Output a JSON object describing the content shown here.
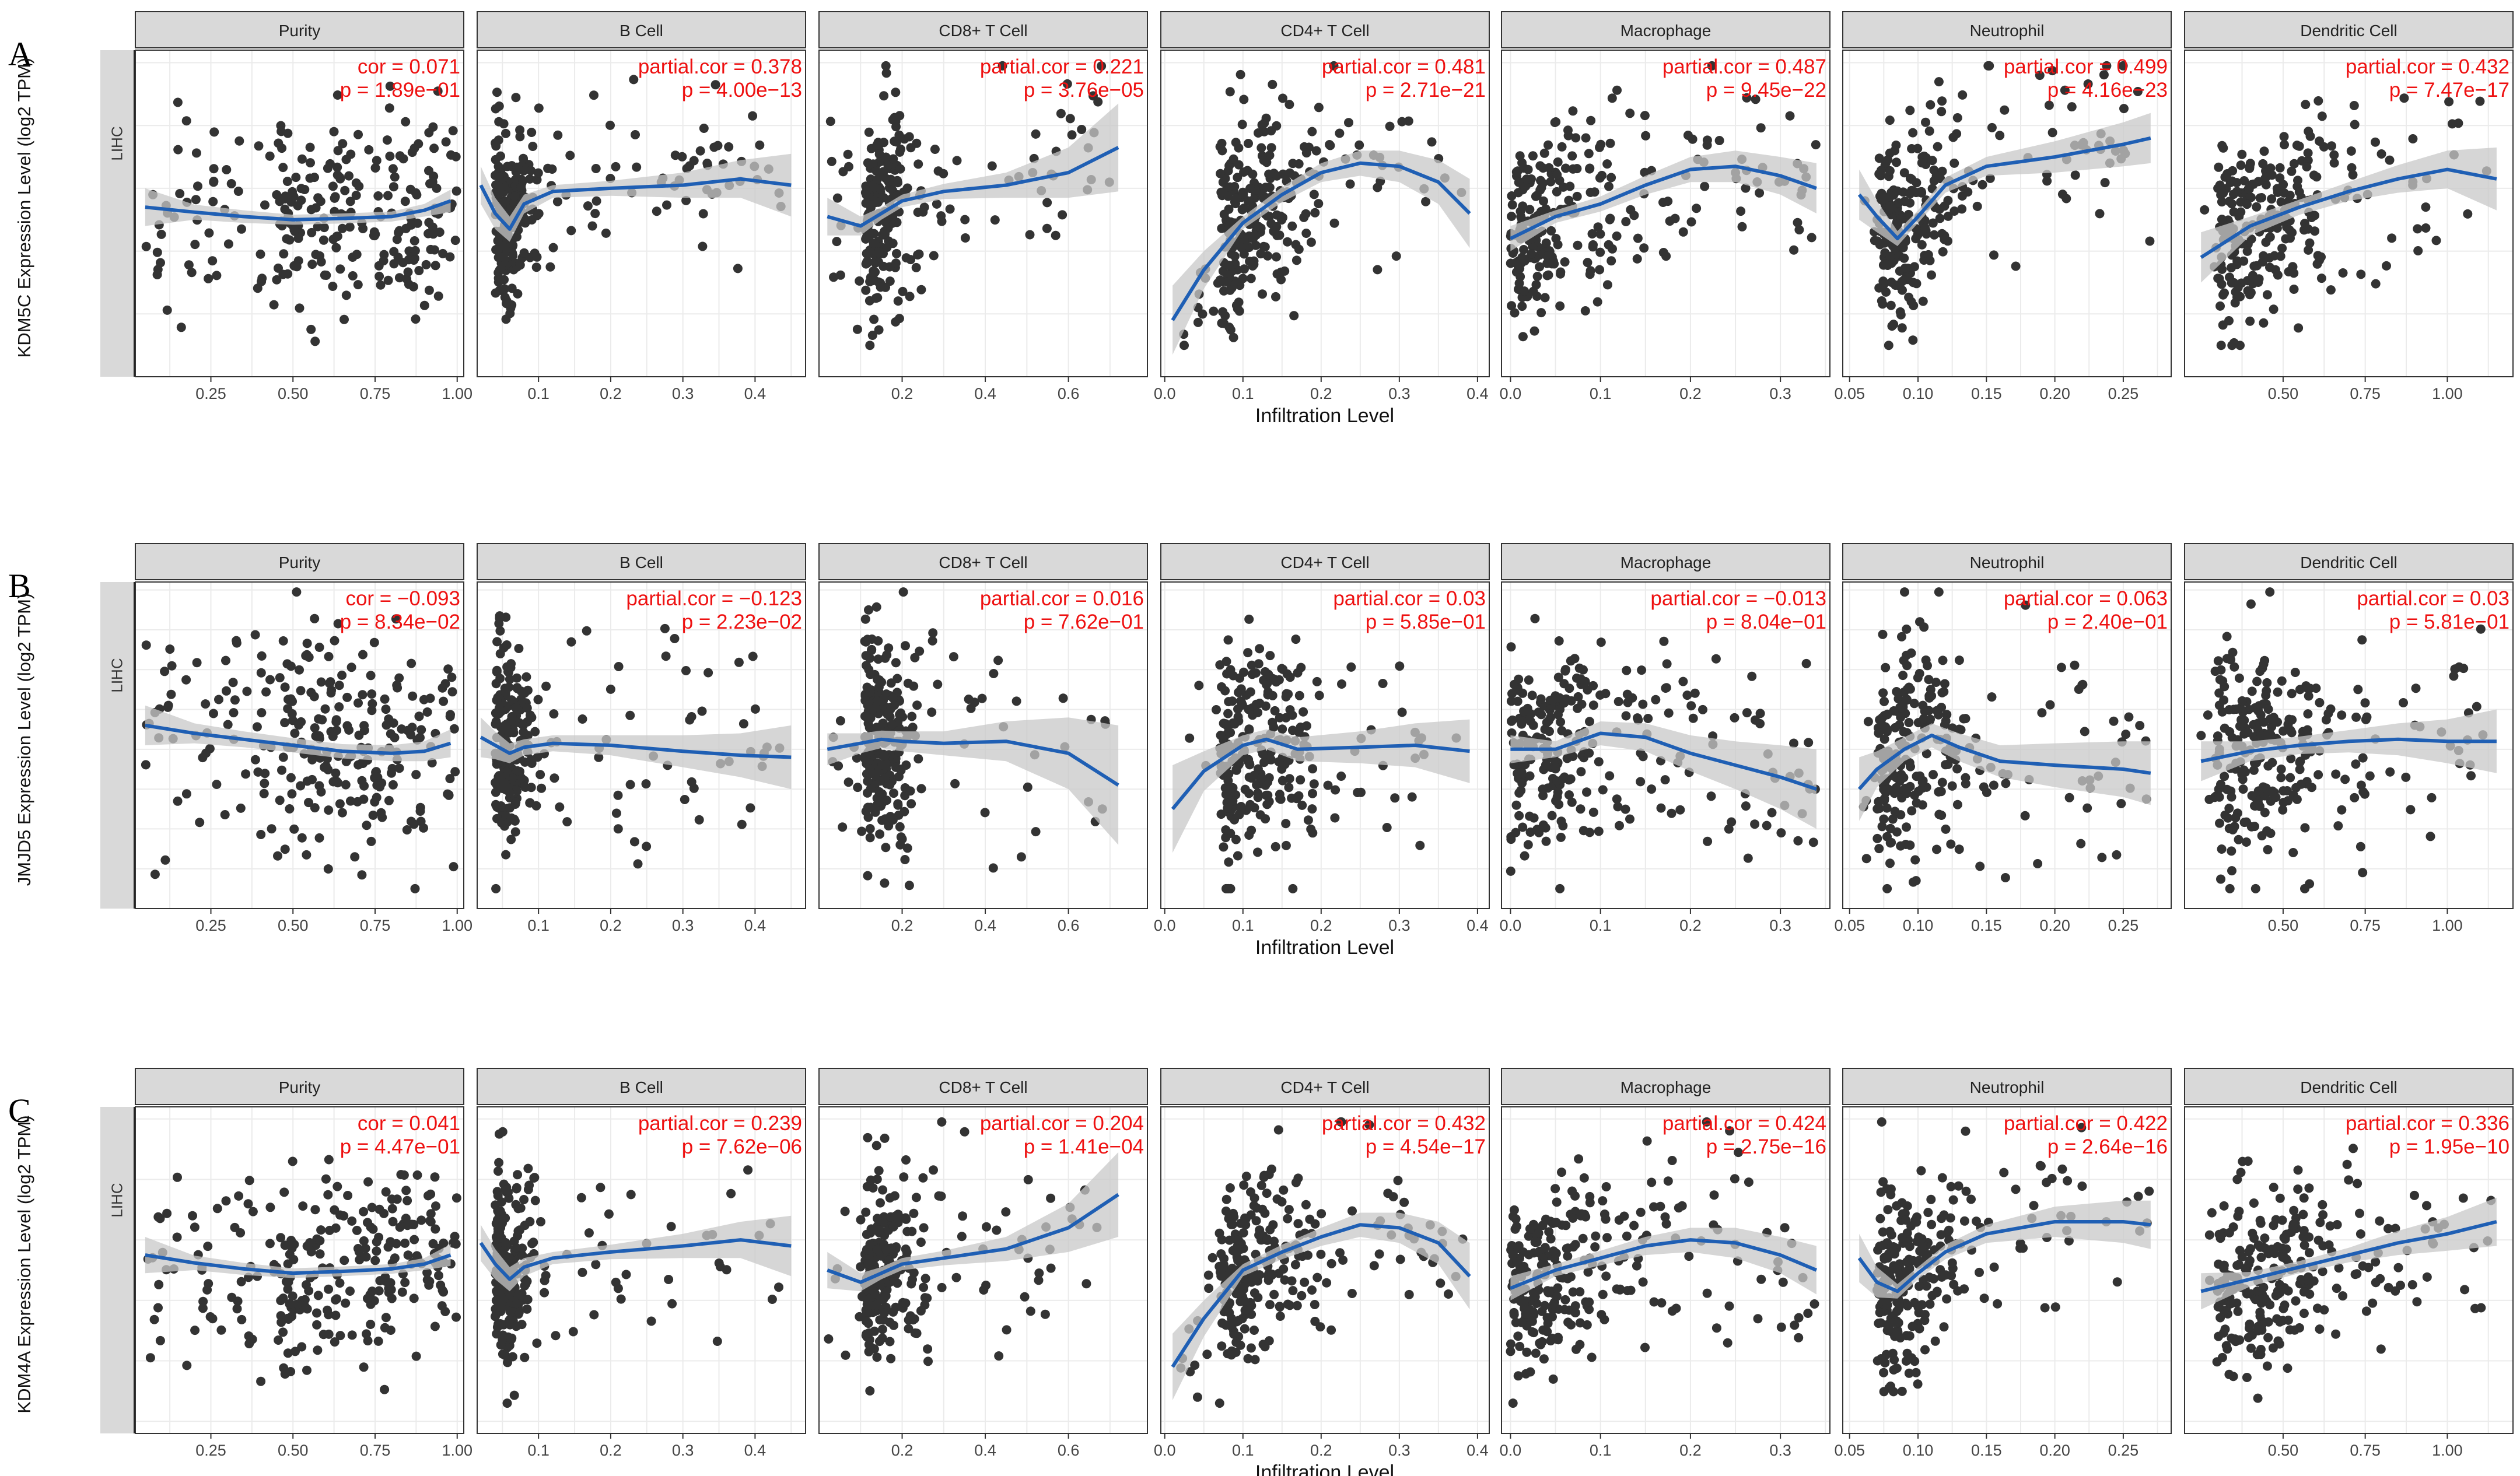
{
  "figure": {
    "x_label": "Infiltration Level",
    "strip_label": "LIHC",
    "colors": {
      "points": "#333333",
      "fit_line": "#1f5fb4",
      "ci_band": "#c8c8c8",
      "annotation": "#ee1111",
      "strip_bg": "#d9d9d9",
      "grid": "#ebebeb"
    },
    "panels": [
      "Purity",
      "B Cell",
      "CD8+ T Cell",
      "CD4+ T Cell",
      "Macrophage",
      "Neutrophil",
      "Dendritic Cell"
    ],
    "x_axes": [
      {
        "xlim": [
          0.02,
          1.02
        ],
        "ticks": [
          0.25,
          0.5,
          0.75,
          1.0
        ],
        "tick_labels": [
          "0.25",
          "0.50",
          "0.75",
          "1.00"
        ]
      },
      {
        "xlim": [
          0.015,
          0.47
        ],
        "ticks": [
          0.1,
          0.2,
          0.3,
          0.4
        ],
        "tick_labels": [
          "0.1",
          "0.2",
          "0.3",
          "0.4"
        ]
      },
      {
        "xlim": [
          0.0,
          0.79
        ],
        "ticks": [
          0.2,
          0.4,
          0.6
        ],
        "tick_labels": [
          "0.2",
          "0.4",
          "0.6"
        ]
      },
      {
        "xlim": [
          -0.005,
          0.415
        ],
        "ticks": [
          0.0,
          0.1,
          0.2,
          0.3,
          0.4
        ],
        "tick_labels": [
          "0.0",
          "0.1",
          "0.2",
          "0.3",
          "0.4"
        ]
      },
      {
        "xlim": [
          -0.01,
          0.355
        ],
        "ticks": [
          0.0,
          0.1,
          0.2,
          0.3
        ],
        "tick_labels": [
          "0.0",
          "0.1",
          "0.2",
          "0.3"
        ]
      },
      {
        "xlim": [
          0.045,
          0.285
        ],
        "ticks": [
          0.05,
          0.1,
          0.15,
          0.2,
          0.25
        ],
        "tick_labels": [
          "0.05",
          "0.10",
          "0.15",
          "0.20",
          "0.25"
        ]
      },
      {
        "xlim": [
          0.2,
          1.2
        ],
        "ticks": [
          0.5,
          0.75,
          1.0
        ],
        "tick_labels": [
          "0.50",
          "0.75",
          "1.00"
        ]
      }
    ],
    "rows": [
      {
        "letter": "A",
        "ylabel": "KDM5C Expression Level (log2 TPM)",
        "ylim": [
          1.0,
          6.2
        ],
        "yticks": [
          2,
          4,
          6
        ],
        "stats": [
          [
            "cor = 0.071",
            "p = 1.89e−01"
          ],
          [
            "partial.cor = 0.378",
            "p = 4.00e−13"
          ],
          [
            "partial.cor = 0.221",
            "p = 3.76e−05"
          ],
          [
            "partial.cor = 0.481",
            "p = 2.71e−21"
          ],
          [
            "partial.cor = 0.487",
            "p = 9.45e−22"
          ],
          [
            "partial.cor = 0.499",
            "p = 4.16e−23"
          ],
          [
            "partial.cor = 0.432",
            "p = 7.47e−17"
          ]
        ],
        "fits": [
          {
            "x": [
              0.05,
              0.2,
              0.35,
              0.5,
              0.65,
              0.8,
              0.9,
              0.98
            ],
            "y": [
              3.7,
              3.62,
              3.55,
              3.5,
              3.52,
              3.55,
              3.65,
              3.8
            ],
            "band": [
              0.3,
              0.12,
              0.1,
              0.08,
              0.08,
              0.08,
              0.1,
              0.18
            ]
          },
          {
            "x": [
              0.02,
              0.04,
              0.06,
              0.08,
              0.12,
              0.2,
              0.3,
              0.38,
              0.45
            ],
            "y": [
              4.05,
              3.6,
              3.35,
              3.75,
              3.95,
              4.0,
              4.05,
              4.15,
              4.05
            ],
            "band": [
              0.3,
              0.25,
              0.2,
              0.15,
              0.1,
              0.12,
              0.2,
              0.3,
              0.5
            ]
          },
          {
            "x": [
              0.02,
              0.1,
              0.15,
              0.2,
              0.3,
              0.45,
              0.6,
              0.72
            ],
            "y": [
              3.55,
              3.4,
              3.6,
              3.8,
              3.95,
              4.05,
              4.25,
              4.65
            ],
            "band": [
              0.3,
              0.15,
              0.1,
              0.1,
              0.12,
              0.2,
              0.4,
              0.7
            ]
          },
          {
            "x": [
              0.01,
              0.05,
              0.1,
              0.15,
              0.2,
              0.25,
              0.3,
              0.35,
              0.39
            ],
            "y": [
              1.9,
              2.7,
              3.45,
              3.9,
              4.25,
              4.4,
              4.35,
              4.1,
              3.6
            ],
            "band": [
              0.55,
              0.3,
              0.1,
              0.12,
              0.15,
              0.2,
              0.25,
              0.35,
              0.55
            ]
          },
          {
            "x": [
              0.0,
              0.05,
              0.1,
              0.15,
              0.2,
              0.25,
              0.3,
              0.34
            ],
            "y": [
              3.2,
              3.55,
              3.75,
              4.05,
              4.3,
              4.35,
              4.2,
              4.0
            ],
            "band": [
              0.2,
              0.1,
              0.12,
              0.15,
              0.2,
              0.25,
              0.3,
              0.4
            ]
          },
          {
            "x": [
              0.057,
              0.07,
              0.085,
              0.1,
              0.12,
              0.15,
              0.2,
              0.25,
              0.27
            ],
            "y": [
              3.9,
              3.55,
              3.2,
              3.55,
              4.05,
              4.35,
              4.5,
              4.7,
              4.8
            ],
            "band": [
              0.4,
              0.25,
              0.12,
              0.1,
              0.12,
              0.15,
              0.25,
              0.35,
              0.4
            ]
          },
          {
            "x": [
              0.25,
              0.4,
              0.55,
              0.7,
              0.85,
              1.0,
              1.15
            ],
            "y": [
              2.9,
              3.4,
              3.7,
              3.95,
              4.15,
              4.3,
              4.15
            ],
            "band": [
              0.4,
              0.15,
              0.12,
              0.15,
              0.22,
              0.3,
              0.5
            ]
          }
        ]
      },
      {
        "letter": "B",
        "ylabel": "JMJD5 Expression Level (log2 TPM)",
        "ylim": [
          -1.0,
          7.2
        ],
        "yticks": [
          0,
          2,
          4,
          6
        ],
        "stats": [
          [
            "cor = −0.093",
            "p = 8.34e−02"
          ],
          [
            "partial.cor = −0.123",
            "p = 2.23e−02"
          ],
          [
            "partial.cor = 0.016",
            "p = 7.62e−01"
          ],
          [
            "partial.cor = 0.03",
            "p = 5.85e−01"
          ],
          [
            "partial.cor = −0.013",
            "p = 8.04e−01"
          ],
          [
            "partial.cor = 0.063",
            "p = 2.40e−01"
          ],
          [
            "partial.cor = 0.03",
            "p = 5.81e−01"
          ]
        ],
        "fits": [
          {
            "x": [
              0.05,
              0.2,
              0.35,
              0.5,
              0.65,
              0.8,
              0.9,
              0.98
            ],
            "y": [
              3.6,
              3.4,
              3.25,
              3.1,
              2.95,
              2.9,
              2.95,
              3.15
            ],
            "band": [
              0.5,
              0.25,
              0.2,
              0.18,
              0.18,
              0.2,
              0.25,
              0.35
            ]
          },
          {
            "x": [
              0.02,
              0.04,
              0.06,
              0.08,
              0.12,
              0.2,
              0.3,
              0.38,
              0.45
            ],
            "y": [
              3.3,
              3.1,
              2.9,
              3.05,
              3.15,
              3.1,
              2.95,
              2.85,
              2.8
            ],
            "band": [
              0.5,
              0.35,
              0.25,
              0.2,
              0.2,
              0.25,
              0.4,
              0.55,
              0.8
            ]
          },
          {
            "x": [
              0.02,
              0.1,
              0.15,
              0.2,
              0.3,
              0.45,
              0.6,
              0.72
            ],
            "y": [
              3.0,
              3.15,
              3.25,
              3.2,
              3.15,
              3.2,
              2.9,
              2.1
            ],
            "band": [
              0.4,
              0.25,
              0.22,
              0.25,
              0.3,
              0.5,
              0.9,
              1.5
            ]
          },
          {
            "x": [
              0.01,
              0.05,
              0.1,
              0.13,
              0.17,
              0.25,
              0.32,
              0.39
            ],
            "y": [
              1.5,
              2.45,
              3.1,
              3.25,
              3.0,
              3.05,
              3.1,
              2.95
            ],
            "band": [
              1.1,
              0.5,
              0.25,
              0.25,
              0.3,
              0.4,
              0.55,
              0.8
            ]
          },
          {
            "x": [
              0.0,
              0.05,
              0.1,
              0.15,
              0.2,
              0.25,
              0.3,
              0.34
            ],
            "y": [
              3.0,
              3.0,
              3.4,
              3.3,
              2.9,
              2.6,
              2.3,
              2.0
            ],
            "band": [
              0.35,
              0.2,
              0.3,
              0.35,
              0.45,
              0.6,
              0.8,
              1.0
            ]
          },
          {
            "x": [
              0.057,
              0.07,
              0.09,
              0.11,
              0.13,
              0.16,
              0.2,
              0.25,
              0.27
            ],
            "y": [
              2.0,
              2.5,
              3.0,
              3.35,
              3.05,
              2.7,
              2.6,
              2.5,
              2.4
            ],
            "band": [
              0.8,
              0.45,
              0.3,
              0.3,
              0.35,
              0.4,
              0.55,
              0.7,
              0.8
            ]
          },
          {
            "x": [
              0.25,
              0.4,
              0.55,
              0.7,
              0.85,
              1.0,
              1.15
            ],
            "y": [
              2.7,
              2.95,
              3.1,
              3.2,
              3.25,
              3.2,
              3.2
            ],
            "band": [
              0.5,
              0.25,
              0.22,
              0.28,
              0.4,
              0.55,
              0.8
            ]
          }
        ]
      },
      {
        "letter": "C",
        "ylabel": "KDM4A Expression Level (log2 TPM)",
        "ylim": [
          0.8,
          6.2
        ],
        "yticks": [
          2,
          4,
          6
        ],
        "stats": [
          [
            "cor = 0.041",
            "p = 4.47e−01"
          ],
          [
            "partial.cor = 0.239",
            "p = 7.62e−06"
          ],
          [
            "partial.cor = 0.204",
            "p = 1.41e−04"
          ],
          [
            "partial.cor = 0.432",
            "p = 4.54e−17"
          ],
          [
            "partial.cor = 0.424",
            "p = 2.75e−16"
          ],
          [
            "partial.cor = 0.422",
            "p = 2.64e−16"
          ],
          [
            "partial.cor = 0.336",
            "p = 1.95e−10"
          ]
        ],
        "fits": [
          {
            "x": [
              0.05,
              0.2,
              0.35,
              0.5,
              0.65,
              0.8,
              0.9,
              0.98
            ],
            "y": [
              3.75,
              3.62,
              3.52,
              3.45,
              3.48,
              3.52,
              3.6,
              3.75
            ],
            "band": [
              0.3,
              0.12,
              0.1,
              0.08,
              0.08,
              0.08,
              0.1,
              0.18
            ]
          },
          {
            "x": [
              0.02,
              0.04,
              0.06,
              0.08,
              0.12,
              0.2,
              0.3,
              0.38,
              0.45
            ],
            "y": [
              3.95,
              3.6,
              3.35,
              3.55,
              3.7,
              3.8,
              3.9,
              4.0,
              3.9
            ],
            "band": [
              0.3,
              0.25,
              0.2,
              0.15,
              0.1,
              0.12,
              0.2,
              0.3,
              0.5
            ]
          },
          {
            "x": [
              0.02,
              0.1,
              0.15,
              0.2,
              0.3,
              0.45,
              0.6,
              0.72
            ],
            "y": [
              3.5,
              3.3,
              3.45,
              3.6,
              3.7,
              3.85,
              4.2,
              4.75
            ],
            "band": [
              0.3,
              0.15,
              0.1,
              0.1,
              0.12,
              0.2,
              0.4,
              0.7
            ]
          },
          {
            "x": [
              0.01,
              0.05,
              0.1,
              0.15,
              0.2,
              0.25,
              0.3,
              0.35,
              0.39
            ],
            "y": [
              1.9,
              2.7,
              3.5,
              3.8,
              4.05,
              4.25,
              4.2,
              3.95,
              3.4
            ],
            "band": [
              0.55,
              0.3,
              0.1,
              0.12,
              0.15,
              0.2,
              0.25,
              0.35,
              0.55
            ]
          },
          {
            "x": [
              0.0,
              0.05,
              0.1,
              0.15,
              0.2,
              0.25,
              0.3,
              0.34
            ],
            "y": [
              3.2,
              3.5,
              3.7,
              3.9,
              4.0,
              3.95,
              3.75,
              3.5
            ],
            "band": [
              0.2,
              0.1,
              0.12,
              0.15,
              0.2,
              0.25,
              0.3,
              0.4
            ]
          },
          {
            "x": [
              0.057,
              0.07,
              0.085,
              0.1,
              0.12,
              0.15,
              0.2,
              0.25,
              0.27
            ],
            "y": [
              3.7,
              3.3,
              3.15,
              3.45,
              3.8,
              4.1,
              4.3,
              4.3,
              4.25
            ],
            "band": [
              0.4,
              0.25,
              0.12,
              0.1,
              0.12,
              0.15,
              0.25,
              0.35,
              0.4
            ]
          },
          {
            "x": [
              0.25,
              0.4,
              0.55,
              0.7,
              0.85,
              1.0,
              1.15
            ],
            "y": [
              3.15,
              3.35,
              3.55,
              3.75,
              3.95,
              4.1,
              4.3
            ],
            "band": [
              0.3,
              0.12,
              0.1,
              0.12,
              0.2,
              0.28,
              0.4
            ]
          }
        ]
      }
    ]
  }
}
